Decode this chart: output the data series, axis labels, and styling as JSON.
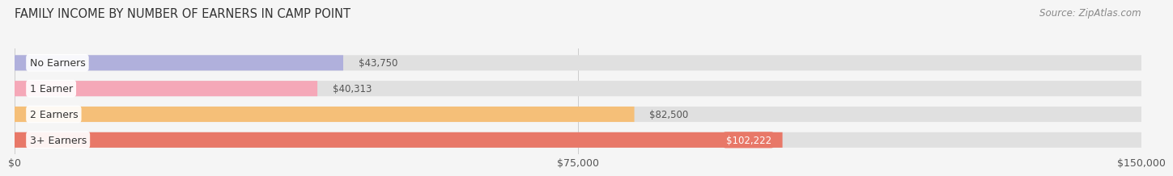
{
  "title": "FAMILY INCOME BY NUMBER OF EARNERS IN CAMP POINT",
  "source": "Source: ZipAtlas.com",
  "categories": [
    "No Earners",
    "1 Earner",
    "2 Earners",
    "3+ Earners"
  ],
  "values": [
    43750,
    40313,
    82500,
    102222
  ],
  "bar_colors": [
    "#b0b0dc",
    "#f5a8b8",
    "#f5bf78",
    "#e87868"
  ],
  "label_colors": [
    "#555555",
    "#555555",
    "#555555",
    "#ffffff"
  ],
  "label_inside": [
    false,
    false,
    false,
    true
  ],
  "xlim": [
    0,
    150000
  ],
  "xticks": [
    0,
    75000,
    150000
  ],
  "xtick_labels": [
    "$0",
    "$75,000",
    "$150,000"
  ],
  "title_fontsize": 10.5,
  "source_fontsize": 8.5,
  "label_fontsize": 8.5,
  "category_fontsize": 9,
  "background_color": "#f5f5f5",
  "bar_background_color": "#e0e0e0"
}
